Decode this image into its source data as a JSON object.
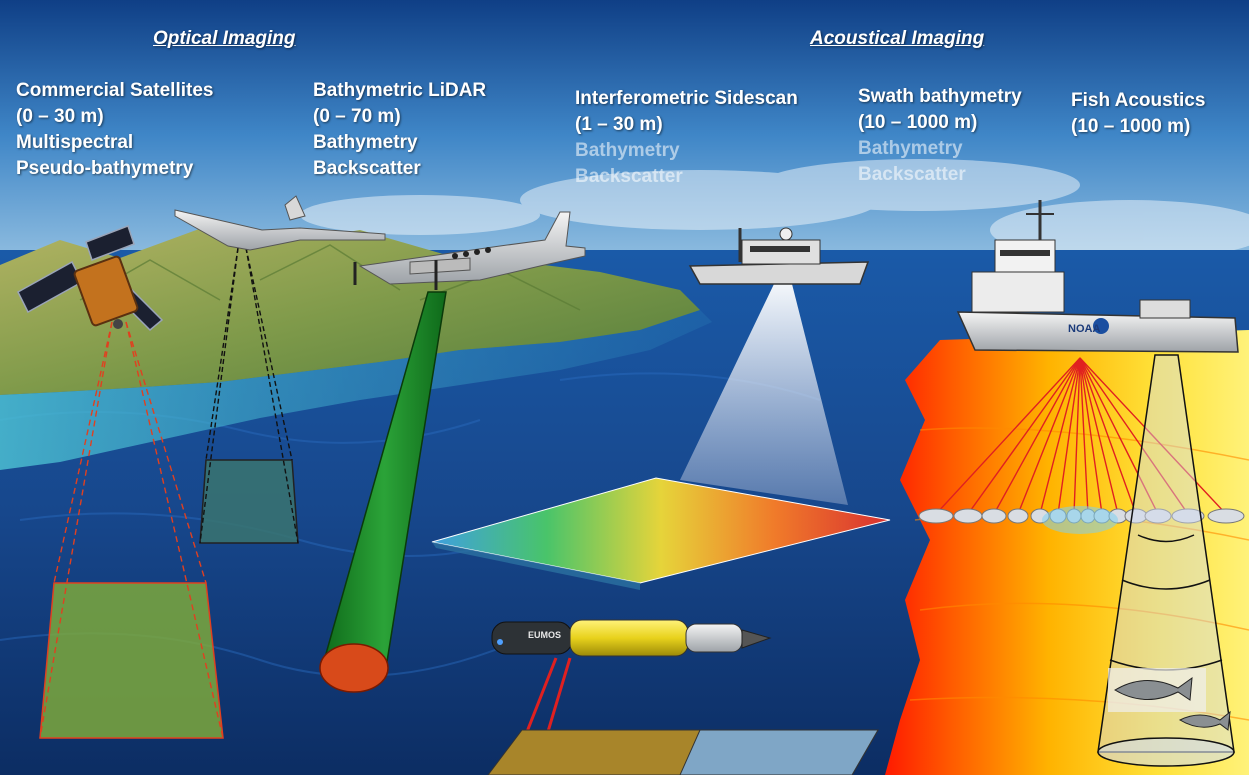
{
  "headers": {
    "optical": "Optical Imaging",
    "acoustical": "Acoustical Imaging"
  },
  "platforms": {
    "satellites": {
      "line1": "Commercial Satellites",
      "line2": "(0 – 30 m)",
      "line3": "Multispectral",
      "line4": "Pseudo-bathymetry"
    },
    "lidar": {
      "line1": "Bathymetric LiDAR",
      "line2": "(0 – 70 m)",
      "line3": "Bathymetry",
      "line4": "Backscatter"
    },
    "sidescan": {
      "line1": "Interferometric Sidescan",
      "line2": "(1 – 30 m)",
      "line3": "Bathymetry",
      "line4": "Backscatter"
    },
    "swath": {
      "line1": "Swath bathymetry",
      "line2": "(10 – 1000 m)",
      "line3": "Bathymetry",
      "line4": "Backscatter"
    },
    "fish": {
      "line1": "Fish Acoustics",
      "line2": "(10 – 1000 m)"
    }
  },
  "vehicles": {
    "ship_marking": "NOAA",
    "auv_marking": "EUMOS"
  },
  "colors": {
    "lidar_beam": "#1e8c1e",
    "lidar_footprint": "#d84a1a",
    "satellite_footprint": "#7ca83c",
    "beam_red": "#e02020",
    "seafloor_red": "#ff1a00",
    "seafloor_yellow": "#ffe23a"
  }
}
